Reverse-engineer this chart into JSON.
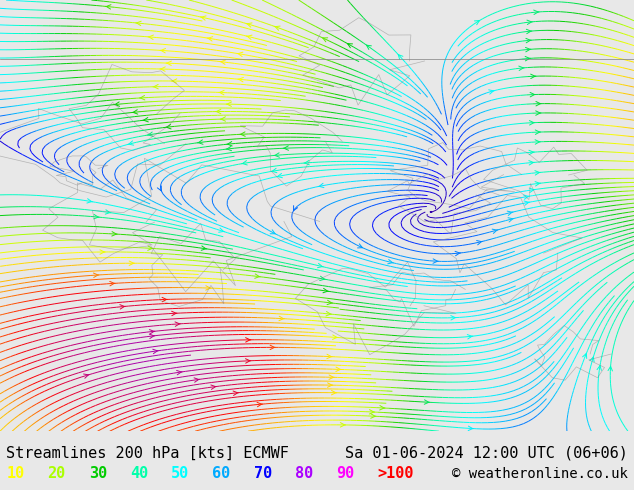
{
  "title_left": "Streamlines 200 hPa [kts] ECMWF",
  "title_right": "Sa 01-06-2024 12:00 UTC (06+06)",
  "copyright": "© weatheronline.co.uk",
  "legend_values": [
    "10",
    "20",
    "30",
    "40",
    "50",
    "60",
    "70",
    "80",
    "90",
    ">100"
  ],
  "legend_colors": [
    "#ffff00",
    "#aaff00",
    "#00cc00",
    "#00ffaa",
    "#00ffff",
    "#00aaff",
    "#0000ff",
    "#aa00ff",
    "#ff00ff",
    "#ff0000"
  ],
  "bg_color": "#e8e8e8",
  "map_bg": "#f0f0f0",
  "title_fontsize": 11,
  "legend_fontsize": 11,
  "copyright_fontsize": 10,
  "figsize": [
    6.34,
    4.9
  ],
  "dpi": 100
}
